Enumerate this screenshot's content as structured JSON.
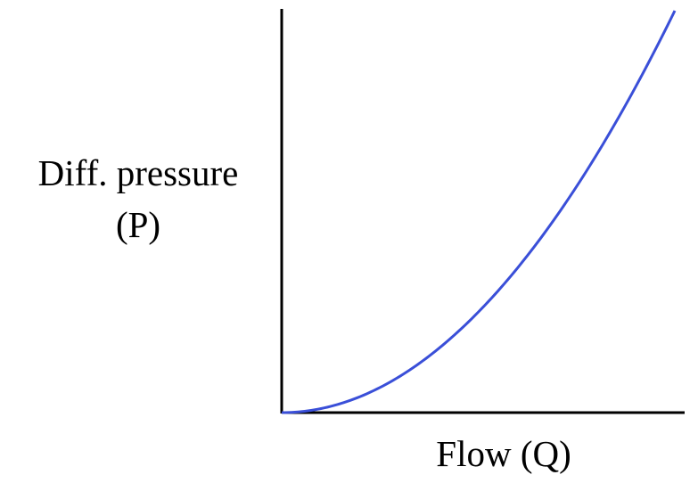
{
  "chart_data": {
    "type": "line",
    "title": "",
    "ylabel_line1": "Diff. pressure",
    "ylabel_line2": "(P)",
    "xlabel": "Flow (Q)",
    "axis_ticks": false,
    "grid": false,
    "series": [
      {
        "relationship": "P proportional to Q^2",
        "color": "#3a4fd8",
        "x": [
          0,
          0.1,
          0.2,
          0.3,
          0.4,
          0.5,
          0.6,
          0.7,
          0.8,
          0.9,
          1.0
        ],
        "y": [
          0,
          0.01,
          0.04,
          0.09,
          0.16,
          0.25,
          0.36,
          0.49,
          0.64,
          0.81,
          1.0
        ]
      }
    ],
    "colors": {
      "axis": "#000000",
      "curve": "#3a4fd8"
    }
  }
}
